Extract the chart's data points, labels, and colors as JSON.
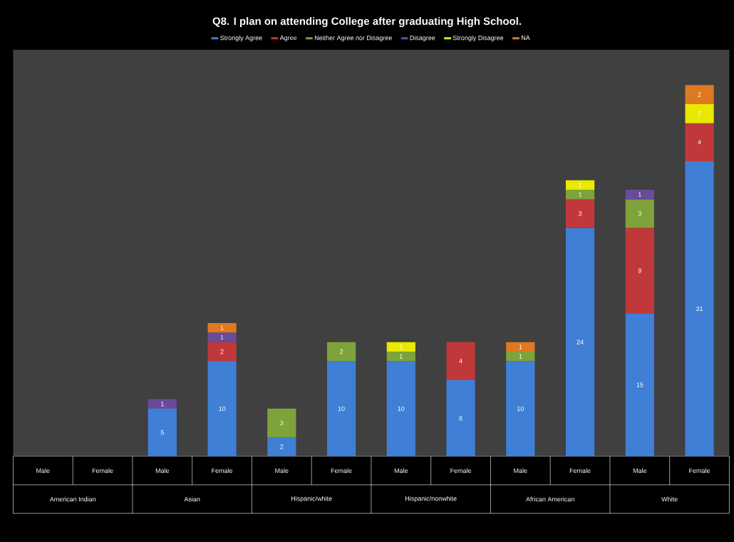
{
  "chart_data": {
    "type": "bar",
    "stacked": true,
    "title": "Q8. I plan on attending College after graduating High School.",
    "categories": [
      "Male",
      "Female",
      "Male",
      "Female",
      "Male",
      "Female",
      "Male",
      "Female",
      "Male",
      "Female",
      "Male",
      "Female"
    ],
    "annotations": [
      "American Indian",
      "Asian",
      "Hispanic/white",
      "Hispanic/nonwhite",
      "African American",
      "White"
    ],
    "series": [
      {
        "name": "Strongly Agree",
        "color": "#3f7fd6",
        "values": [
          null,
          null,
          5,
          10,
          2,
          10,
          10,
          8,
          10,
          24,
          15,
          31
        ]
      },
      {
        "name": "Agree",
        "color": "#c0383a",
        "values": [
          null,
          null,
          null,
          2,
          null,
          null,
          null,
          4,
          null,
          3,
          9,
          4
        ]
      },
      {
        "name": "Neither Agree nor Disagree",
        "color": "#7ea33a",
        "values": [
          null,
          null,
          null,
          null,
          3,
          2,
          1,
          null,
          1,
          1,
          3,
          null
        ]
      },
      {
        "name": "Disagree",
        "color": "#6a4a9a",
        "values": [
          null,
          null,
          1,
          1,
          null,
          null,
          null,
          null,
          null,
          null,
          1,
          null
        ]
      },
      {
        "name": "Strongly Disagree",
        "color": "#e8e800",
        "values": [
          null,
          null,
          null,
          null,
          null,
          null,
          1,
          null,
          null,
          1,
          null,
          2
        ]
      },
      {
        "name": "NA",
        "color": "#e07820",
        "values": [
          null,
          null,
          null,
          1,
          null,
          null,
          null,
          null,
          1,
          null,
          null,
          2
        ]
      }
    ],
    "ylim": [
      0,
      42.7
    ],
    "data_labels": true,
    "legend": "top",
    "grid": false
  }
}
